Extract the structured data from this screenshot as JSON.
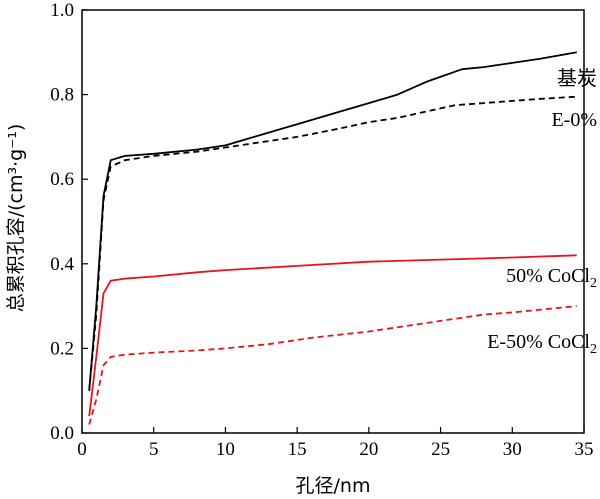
{
  "chart_data": {
    "type": "line",
    "xlabel": "孔径/nm",
    "ylabel": "总累积孔容/(cm³·g⁻¹)",
    "xlim": [
      0,
      35
    ],
    "ylim": [
      0.0,
      1.0
    ],
    "xticks": [
      0,
      5,
      10,
      15,
      20,
      25,
      30,
      35
    ],
    "yticks": [
      0.0,
      0.2,
      0.4,
      0.6,
      0.8,
      1.0
    ],
    "xtick_labels": [
      "0",
      "5",
      "10",
      "15",
      "20",
      "25",
      "30",
      "35"
    ],
    "ytick_labels": [
      "0.0",
      "0.2",
      "0.4",
      "0.6",
      "0.8",
      "1.0"
    ],
    "grid": false,
    "legend": "inline labels at right end of each curve",
    "series": [
      {
        "name": "基炭",
        "label_lines": [
          "基炭"
        ],
        "color": "#000000",
        "dash": "solid",
        "x": [
          0.5,
          1.0,
          1.5,
          2.0,
          3.0,
          5.0,
          8.0,
          10.0,
          12.0,
          15.0,
          18.0,
          20.0,
          22.0,
          24.0,
          26.5,
          28.0,
          30.0,
          32.0,
          34.5
        ],
        "y": [
          0.1,
          0.3,
          0.56,
          0.645,
          0.655,
          0.66,
          0.67,
          0.68,
          0.7,
          0.73,
          0.76,
          0.78,
          0.8,
          0.83,
          0.86,
          0.865,
          0.875,
          0.885,
          0.9
        ]
      },
      {
        "name": "E-0%",
        "label_lines": [
          "E-0%"
        ],
        "color": "#000000",
        "dash": "dashed",
        "x": [
          0.5,
          1.0,
          1.5,
          2.0,
          3.0,
          5.0,
          8.0,
          10.0,
          12.0,
          15.0,
          18.0,
          20.0,
          22.0,
          24.0,
          26.0,
          28.0,
          30.0,
          32.0,
          34.5
        ],
        "y": [
          0.1,
          0.28,
          0.55,
          0.63,
          0.645,
          0.655,
          0.665,
          0.675,
          0.685,
          0.7,
          0.72,
          0.735,
          0.745,
          0.76,
          0.775,
          0.78,
          0.785,
          0.79,
          0.795
        ]
      },
      {
        "name": "50% CoCl2",
        "label_lines": [
          "50% CoCl",
          "2"
        ],
        "color": "#e8141c",
        "dash": "solid",
        "x": [
          0.5,
          1.0,
          1.5,
          2.0,
          3.0,
          5.0,
          8.0,
          10.0,
          15.0,
          20.0,
          25.0,
          30.0,
          34.5
        ],
        "y": [
          0.04,
          0.18,
          0.33,
          0.36,
          0.365,
          0.37,
          0.38,
          0.385,
          0.395,
          0.405,
          0.41,
          0.415,
          0.42
        ]
      },
      {
        "name": "E-50% CoCl2",
        "label_lines": [
          "E-50% CoCl",
          "2"
        ],
        "color": "#e8141c",
        "dash": "dashed",
        "x": [
          0.5,
          1.0,
          1.5,
          2.0,
          3.0,
          5.0,
          8.0,
          10.0,
          13.0,
          16.0,
          20.0,
          25.0,
          28.0,
          30.0,
          34.5
        ],
        "y": [
          0.02,
          0.08,
          0.16,
          0.18,
          0.185,
          0.19,
          0.195,
          0.2,
          0.21,
          0.225,
          0.24,
          0.265,
          0.28,
          0.285,
          0.3
        ]
      }
    ]
  }
}
